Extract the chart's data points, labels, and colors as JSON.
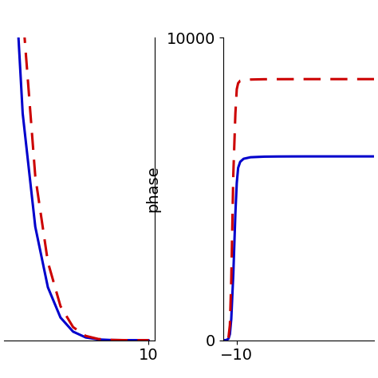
{
  "left": {
    "x": [
      -20,
      -15,
      -12,
      -10,
      -8,
      -6,
      -4,
      -2,
      0,
      2,
      4,
      6,
      8,
      10
    ],
    "y_blue": [
      200000,
      50000,
      18000,
      9000,
      4500,
      2100,
      900,
      340,
      110,
      30,
      7,
      1.5,
      0.3,
      0.05
    ],
    "y_red": [
      200000,
      70000,
      25000,
      13000,
      6500,
      3100,
      1350,
      520,
      170,
      48,
      12,
      2.5,
      0.5,
      0.08
    ],
    "xlim": [
      -13,
      11
    ],
    "ylim": [
      0,
      12000
    ],
    "xtick": [
      10
    ],
    "ytick": []
  },
  "right": {
    "x_blue": [
      -15,
      -12,
      -11.5,
      -11.2,
      -11.0,
      -10.8,
      -10.5,
      -10.2,
      -10.0,
      -9.8,
      -9.5,
      -9.0,
      -8.0,
      -6.0,
      -4.0,
      -2.0,
      0.0,
      5.0,
      10.0
    ],
    "y_blue": [
      0,
      0,
      5,
      50,
      200,
      700,
      2200,
      4200,
      5200,
      5700,
      5900,
      6000,
      6050,
      6070,
      6075,
      6077,
      6078,
      6078,
      6078
    ],
    "x_red": [
      -15,
      -12,
      -11.5,
      -11.2,
      -11.0,
      -10.8,
      -10.5,
      -10.2,
      -10.0,
      -9.8,
      -9.5,
      -9.0,
      -8.0,
      -6.0,
      -4.0,
      -2.0,
      0.0,
      5.0,
      10.0
    ],
    "y_red": [
      0,
      0,
      10,
      100,
      500,
      2000,
      5500,
      7500,
      8300,
      8500,
      8580,
      8600,
      8620,
      8630,
      8632,
      8633,
      8634,
      8634,
      8634
    ],
    "xlim": [
      -12,
      10
    ],
    "ylim": [
      0,
      10000
    ],
    "xtick": [
      -10
    ],
    "ytick": [
      0,
      10000
    ],
    "ylabel": "phase"
  },
  "line_width": 2.2,
  "blue_color": "#0000cc",
  "red_color": "#cc0000",
  "tick_fontsize": 14,
  "label_fontsize": 14
}
